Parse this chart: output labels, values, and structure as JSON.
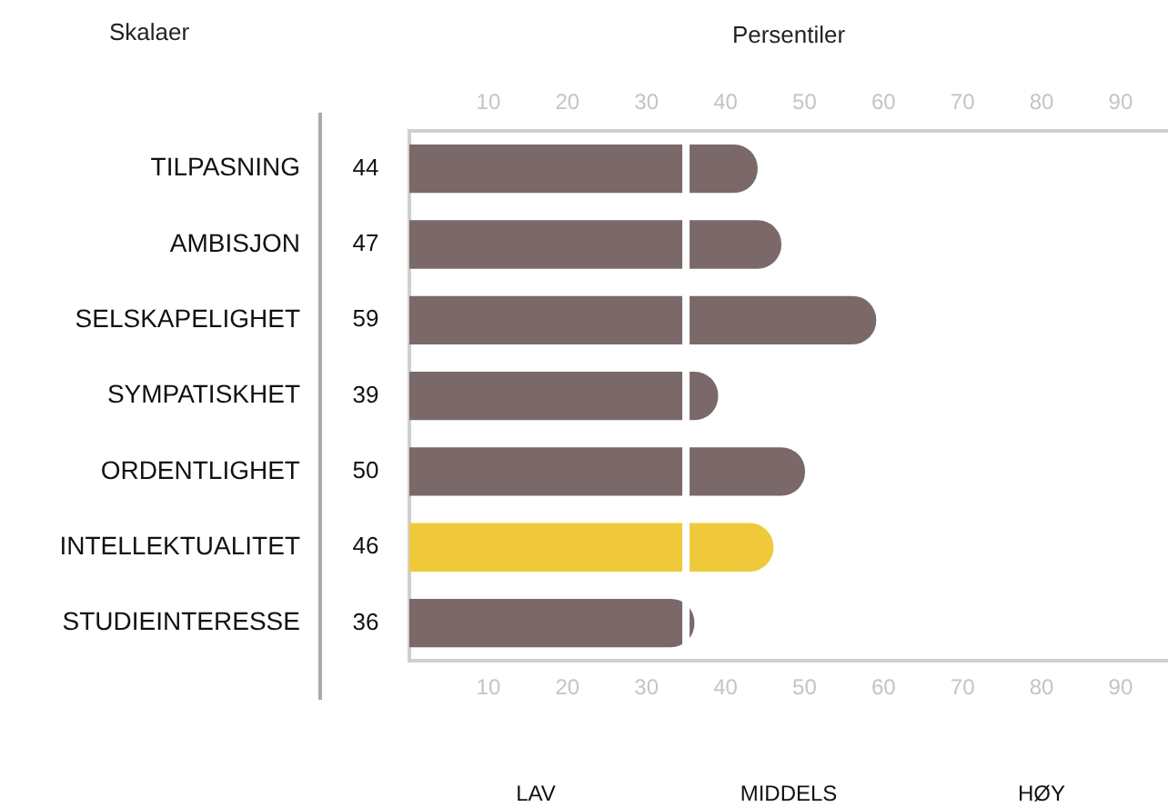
{
  "chart_data": {
    "type": "bar",
    "orientation": "horizontal",
    "x2label": "Persentiler",
    "ylabel": "Skalaer",
    "categories": [
      "TILPASNING",
      "AMBISJON",
      "SELSKAPELIGHET",
      "SYMPATISKHET",
      "ORDENTLIGHET",
      "INTELLEKTUALITET",
      "STUDIEINTERESSE"
    ],
    "values": [
      44,
      47,
      59,
      39,
      50,
      46,
      36
    ],
    "colors": [
      "#7b6969",
      "#7b6969",
      "#7b6969",
      "#7b6969",
      "#7b6969",
      "#f0c93a",
      "#7b6969"
    ],
    "data_labels": true,
    "xlim": [
      0,
      96
    ],
    "xticks": [
      10,
      20,
      30,
      40,
      50,
      60,
      70,
      80,
      90
    ],
    "x2lim": [
      0,
      96
    ],
    "x2ticks": [
      10,
      20,
      30,
      40,
      50,
      60,
      70,
      80,
      90
    ],
    "ref_lines": [
      {
        "axis": "x",
        "value": 35,
        "color": "#ffffff"
      }
    ],
    "annotations": [
      "LAV",
      "MIDDELS",
      "HØY"
    ],
    "grid": false,
    "legend": false
  }
}
